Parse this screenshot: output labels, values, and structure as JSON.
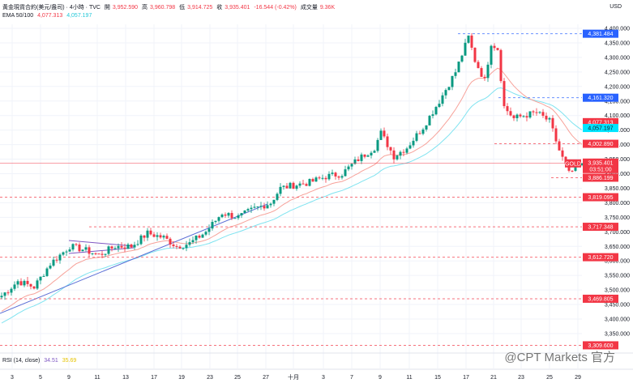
{
  "header": {
    "title": "黃金現貨合約(美元/盎司) · 4小時 · TVC",
    "open_label": "開",
    "open": "3,952.590",
    "high_label": "高",
    "high": "3,960.798",
    "low_label": "低",
    "low": "3,914.725",
    "close_label": "收",
    "close": "3,935.401",
    "change": "-16.544 (-0.42%)",
    "volume_label": "成交量",
    "volume": "9.36K"
  },
  "ema": {
    "label": "EMA 50/100",
    "ema50": "4,077.313",
    "ema100": "4,057.197"
  },
  "rsi": {
    "label": "RSI (14, close)",
    "value1": "34.51",
    "value2": "35.69"
  },
  "currency": "USD",
  "watermark": "@CPT Markets 官方",
  "colors": {
    "up": "#089981",
    "down": "#f23645",
    "ema50": "#f7a29a",
    "ema100": "#7fe3f0",
    "level_red": "#f23645",
    "level_blue": "#2962ff"
  },
  "chart_data": {
    "type": "candlestick",
    "symbol_badge": "GOLD",
    "countdown": "03:51:00",
    "ylim": [
      3300,
      4420
    ],
    "y_ticks": [
      "4,400.000",
      "4,350.000",
      "4,300.000",
      "4,250.000",
      "4,200.000",
      "4,150.000",
      "4,100.000",
      "4,050.000",
      "4,000.000",
      "3,950.000",
      "3,900.000",
      "3,850.000",
      "3,800.000",
      "3,750.000",
      "3,700.000",
      "3,650.000",
      "3,600.000",
      "3,550.000",
      "3,500.000",
      "3,450.000",
      "3,400.000",
      "3,350.000"
    ],
    "x_ticks": [
      "3",
      "5",
      "9",
      "11",
      "13",
      "17",
      "19",
      "23",
      "25",
      "27",
      "十月",
      "3",
      "7",
      "9",
      "11",
      "15",
      "17",
      "21",
      "23",
      "25",
      "29"
    ],
    "close_path": [
      [
        0,
        3480
      ],
      [
        5,
        3530
      ],
      [
        10,
        3510
      ],
      [
        15,
        3590
      ],
      [
        21,
        3650
      ],
      [
        25,
        3640
      ],
      [
        30,
        3620
      ],
      [
        35,
        3650
      ],
      [
        40,
        3650
      ],
      [
        45,
        3695
      ],
      [
        50,
        3680
      ],
      [
        54,
        3650
      ],
      [
        58,
        3660
      ],
      [
        63,
        3700
      ],
      [
        68,
        3765
      ],
      [
        73,
        3750
      ],
      [
        78,
        3780
      ],
      [
        83,
        3800
      ],
      [
        86,
        3850
      ],
      [
        90,
        3860
      ],
      [
        95,
        3870
      ],
      [
        100,
        3890
      ],
      [
        105,
        3900
      ],
      [
        110,
        3950
      ],
      [
        115,
        3990
      ],
      [
        117,
        4040
      ],
      [
        121,
        3960
      ],
      [
        125,
        3990
      ],
      [
        130,
        4060
      ],
      [
        135,
        4150
      ],
      [
        140,
        4250
      ],
      [
        144,
        4370
      ],
      [
        146,
        4290
      ],
      [
        149,
        4220
      ],
      [
        151,
        4350
      ],
      [
        153,
        4330
      ],
      [
        155,
        4130
      ],
      [
        158,
        4090
      ],
      [
        161,
        4100
      ],
      [
        165,
        4110
      ],
      [
        169,
        4080
      ],
      [
        172,
        3980
      ],
      [
        175,
        3900
      ],
      [
        179,
        3935
      ]
    ],
    "last_close": 3935.401,
    "ema50_last": 4077.313,
    "ema100_last": 4057.197,
    "levels": [
      {
        "value": 4381.484,
        "label": "4,381.484",
        "color": "blue"
      },
      {
        "value": 4161.32,
        "label": "4,161.320",
        "color": "blue"
      },
      {
        "value": 4002.89,
        "label": "4,002.890",
        "color": "red"
      },
      {
        "value": 3886.199,
        "label": "3,886.199",
        "color": "red"
      },
      {
        "value": 3819.095,
        "label": "3,819.095",
        "color": "red"
      },
      {
        "value": 3717.348,
        "label": "3,717.348",
        "color": "red"
      },
      {
        "value": 3612.72,
        "label": "3,612.720",
        "color": "red"
      },
      {
        "value": 3469.805,
        "label": "3,469.805",
        "color": "red"
      },
      {
        "value": 3309.6,
        "label": "3,309.600",
        "color": "red"
      }
    ],
    "last_label": "3,935.401"
  }
}
